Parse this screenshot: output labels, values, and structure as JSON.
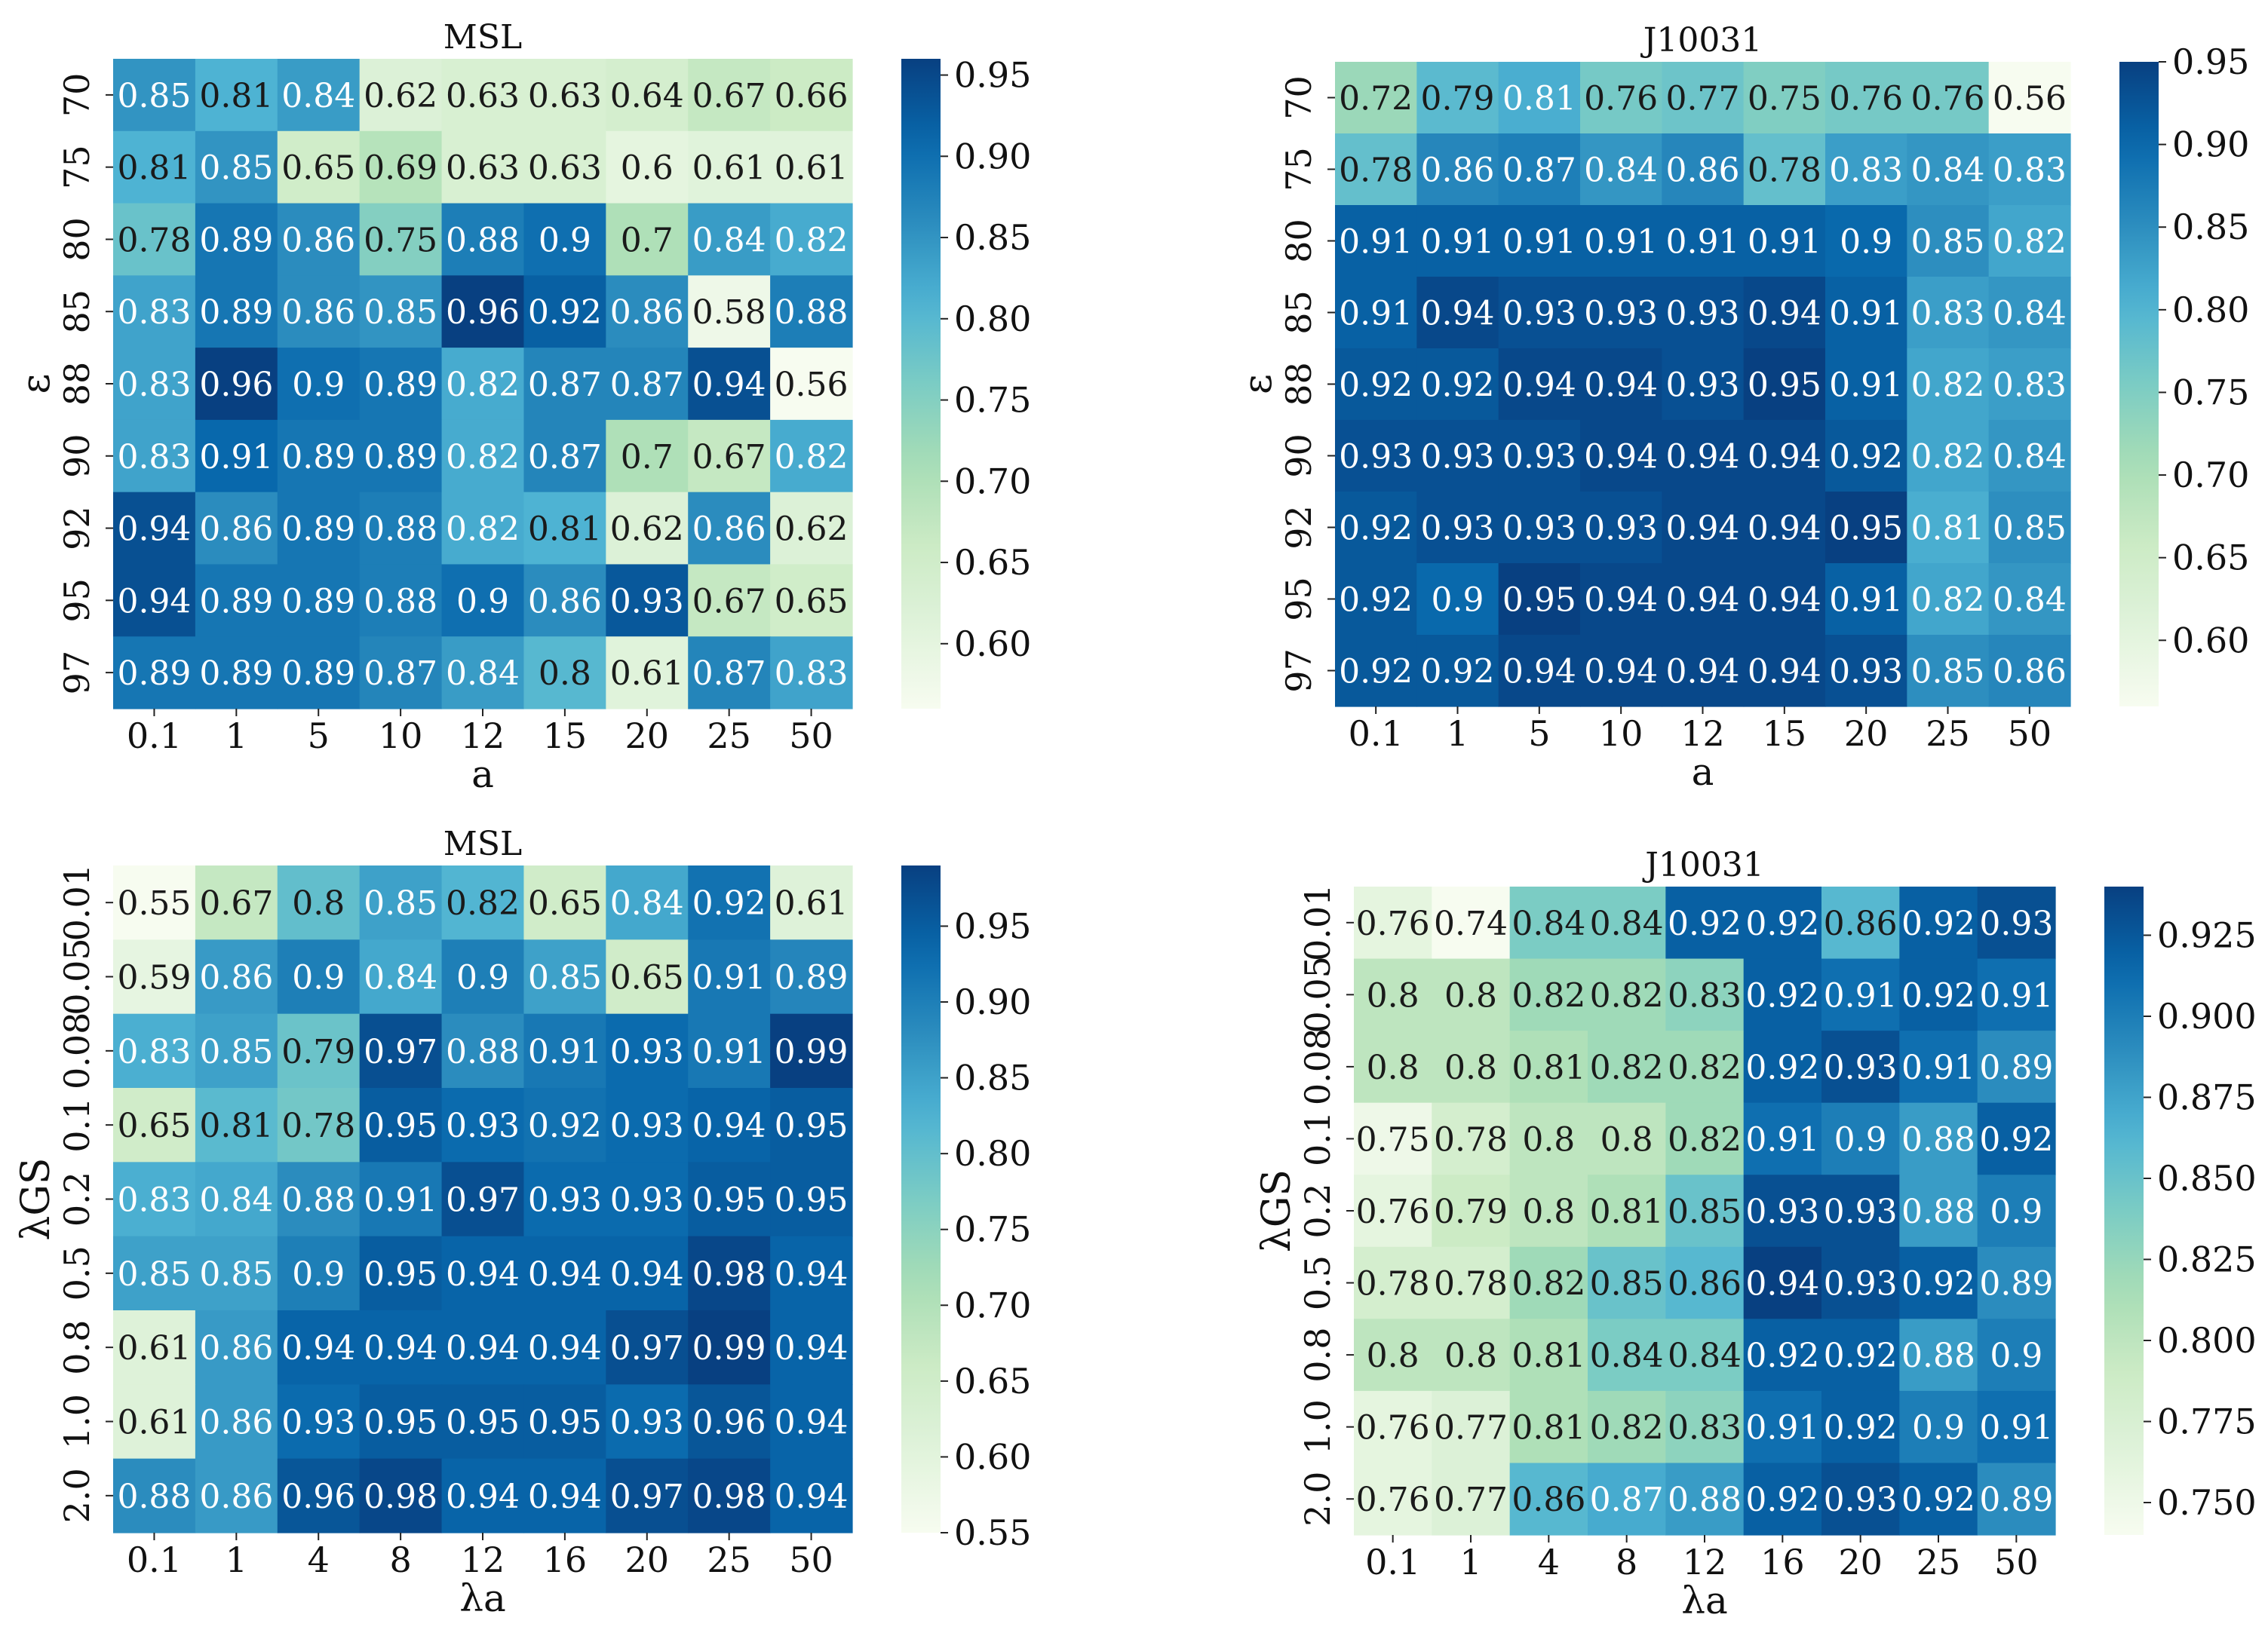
{
  "chart_data": [
    {
      "type": "heatmap",
      "title": "MSL",
      "xlabel": "a",
      "ylabel": "ε",
      "x_categories": [
        "0.1",
        "1",
        "5",
        "10",
        "12",
        "15",
        "20",
        "25",
        "50"
      ],
      "y_categories": [
        "70",
        "75",
        "80",
        "85",
        "88",
        "90",
        "92",
        "95",
        "97"
      ],
      "values": [
        [
          0.85,
          0.81,
          0.84,
          0.62,
          0.63,
          0.63,
          0.64,
          0.67,
          0.66
        ],
        [
          0.81,
          0.85,
          0.65,
          0.69,
          0.63,
          0.63,
          0.6,
          0.61,
          0.61
        ],
        [
          0.78,
          0.89,
          0.86,
          0.75,
          0.88,
          0.9,
          0.7,
          0.84,
          0.82
        ],
        [
          0.83,
          0.89,
          0.86,
          0.85,
          0.96,
          0.92,
          0.86,
          0.58,
          0.88
        ],
        [
          0.83,
          0.96,
          0.9,
          0.89,
          0.82,
          0.87,
          0.87,
          0.94,
          0.56
        ],
        [
          0.83,
          0.91,
          0.89,
          0.89,
          0.82,
          0.87,
          0.7,
          0.67,
          0.82
        ],
        [
          0.94,
          0.86,
          0.89,
          0.88,
          0.82,
          0.81,
          0.62,
          0.86,
          0.62
        ],
        [
          0.94,
          0.89,
          0.89,
          0.88,
          0.9,
          0.86,
          0.93,
          0.67,
          0.65
        ],
        [
          0.89,
          0.89,
          0.89,
          0.87,
          0.84,
          0.8,
          0.61,
          0.87,
          0.83
        ]
      ],
      "colorbar_range": [
        0.56,
        0.96
      ],
      "colorbar_ticks": [
        "0.60",
        "0.65",
        "0.70",
        "0.75",
        "0.80",
        "0.85",
        "0.90",
        "0.95"
      ]
    },
    {
      "type": "heatmap",
      "title": "J10031",
      "xlabel": "a",
      "ylabel": "ε",
      "x_categories": [
        "0.1",
        "1",
        "5",
        "10",
        "12",
        "15",
        "20",
        "25",
        "50"
      ],
      "y_categories": [
        "70",
        "75",
        "80",
        "85",
        "88",
        "90",
        "92",
        "95",
        "97"
      ],
      "values": [
        [
          0.72,
          0.79,
          0.81,
          0.76,
          0.77,
          0.75,
          0.76,
          0.76,
          0.56
        ],
        [
          0.78,
          0.86,
          0.87,
          0.84,
          0.86,
          0.78,
          0.83,
          0.84,
          0.83
        ],
        [
          0.91,
          0.91,
          0.91,
          0.91,
          0.91,
          0.91,
          0.9,
          0.85,
          0.82
        ],
        [
          0.91,
          0.94,
          0.93,
          0.93,
          0.93,
          0.94,
          0.91,
          0.83,
          0.84
        ],
        [
          0.92,
          0.92,
          0.94,
          0.94,
          0.93,
          0.95,
          0.91,
          0.82,
          0.83
        ],
        [
          0.93,
          0.93,
          0.93,
          0.94,
          0.94,
          0.94,
          0.92,
          0.82,
          0.84
        ],
        [
          0.92,
          0.93,
          0.93,
          0.93,
          0.94,
          0.94,
          0.95,
          0.81,
          0.85
        ],
        [
          0.92,
          0.9,
          0.95,
          0.94,
          0.94,
          0.94,
          0.91,
          0.82,
          0.84
        ],
        [
          0.92,
          0.92,
          0.94,
          0.94,
          0.94,
          0.94,
          0.93,
          0.85,
          0.86
        ]
      ],
      "colorbar_range": [
        0.56,
        0.95
      ],
      "colorbar_ticks": [
        "0.60",
        "0.65",
        "0.70",
        "0.75",
        "0.80",
        "0.85",
        "0.90",
        "0.95"
      ]
    },
    {
      "type": "heatmap",
      "title": "MSL",
      "xlabel": "λa",
      "ylabel": "λGS",
      "x_categories": [
        "0.1",
        "1",
        "4",
        "8",
        "12",
        "16",
        "20",
        "25",
        "50"
      ],
      "y_categories": [
        "0.01",
        "0.05",
        "0.08",
        "0.1",
        "0.2",
        "0.5",
        "0.8",
        "1.0",
        "2.0"
      ],
      "values": [
        [
          0.55,
          0.67,
          0.8,
          0.85,
          0.82,
          0.65,
          0.84,
          0.92,
          0.61
        ],
        [
          0.59,
          0.86,
          0.9,
          0.84,
          0.9,
          0.85,
          0.65,
          0.91,
          0.89
        ],
        [
          0.83,
          0.85,
          0.79,
          0.97,
          0.88,
          0.91,
          0.93,
          0.91,
          0.99
        ],
        [
          0.65,
          0.81,
          0.78,
          0.95,
          0.93,
          0.92,
          0.93,
          0.94,
          0.95
        ],
        [
          0.83,
          0.84,
          0.88,
          0.91,
          0.97,
          0.93,
          0.93,
          0.95,
          0.95
        ],
        [
          0.85,
          0.85,
          0.9,
          0.95,
          0.94,
          0.94,
          0.94,
          0.98,
          0.94
        ],
        [
          0.61,
          0.86,
          0.94,
          0.94,
          0.94,
          0.94,
          0.97,
          0.99,
          0.94
        ],
        [
          0.61,
          0.86,
          0.93,
          0.95,
          0.95,
          0.95,
          0.93,
          0.96,
          0.94
        ],
        [
          0.88,
          0.86,
          0.96,
          0.98,
          0.94,
          0.94,
          0.97,
          0.98,
          0.94
        ]
      ],
      "colorbar_range": [
        0.55,
        0.99
      ],
      "colorbar_ticks": [
        "0.55",
        "0.60",
        "0.65",
        "0.70",
        "0.75",
        "0.80",
        "0.85",
        "0.90",
        "0.95"
      ]
    },
    {
      "type": "heatmap",
      "title": "J10031",
      "xlabel": "λa",
      "ylabel": "λGS",
      "x_categories": [
        "0.1",
        "1",
        "4",
        "8",
        "12",
        "16",
        "20",
        "25",
        "50"
      ],
      "y_categories": [
        "0.01",
        "0.05",
        "0.08",
        "0.1",
        "0.2",
        "0.5",
        "0.8",
        "1.0",
        "2.0"
      ],
      "values": [
        [
          0.76,
          0.74,
          0.84,
          0.84,
          0.92,
          0.92,
          0.86,
          0.92,
          0.93
        ],
        [
          0.8,
          0.8,
          0.82,
          0.82,
          0.83,
          0.92,
          0.91,
          0.92,
          0.91
        ],
        [
          0.8,
          0.8,
          0.81,
          0.82,
          0.82,
          0.92,
          0.93,
          0.91,
          0.89
        ],
        [
          0.75,
          0.78,
          0.8,
          0.8,
          0.82,
          0.91,
          0.9,
          0.88,
          0.92
        ],
        [
          0.76,
          0.79,
          0.8,
          0.81,
          0.85,
          0.93,
          0.93,
          0.88,
          0.9
        ],
        [
          0.78,
          0.78,
          0.82,
          0.85,
          0.86,
          0.94,
          0.93,
          0.92,
          0.89
        ],
        [
          0.8,
          0.8,
          0.81,
          0.84,
          0.84,
          0.92,
          0.92,
          0.88,
          0.9
        ],
        [
          0.76,
          0.77,
          0.81,
          0.82,
          0.83,
          0.91,
          0.92,
          0.9,
          0.91
        ],
        [
          0.76,
          0.77,
          0.86,
          0.87,
          0.88,
          0.92,
          0.93,
          0.92,
          0.89
        ]
      ],
      "colorbar_range": [
        0.74,
        0.94
      ],
      "colorbar_ticks": [
        "0.750",
        "0.775",
        "0.800",
        "0.825",
        "0.850",
        "0.875",
        "0.900",
        "0.925"
      ]
    }
  ]
}
